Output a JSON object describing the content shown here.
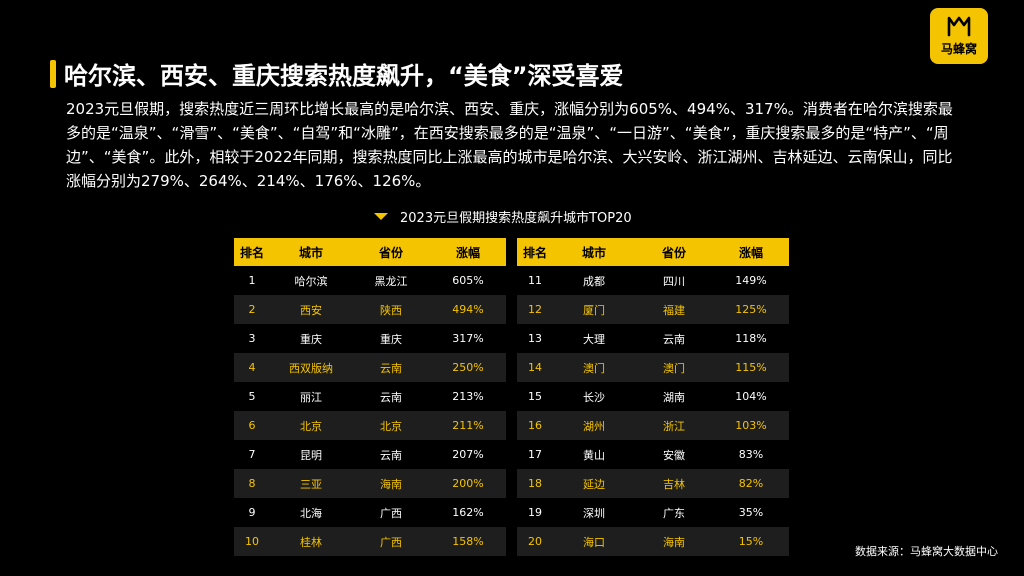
{
  "brand": {
    "logo_text": "马蜂窝",
    "accent": "#f5c400"
  },
  "title": "哈尔滨、西安、重庆搜索热度飙升，“美食”深受喜爱",
  "description": "2023元旦假期，搜索热度近三周环比增长最高的是哈尔滨、西安、重庆，涨幅分别为605%、494%、317%。消费者在哈尔滨搜索最多的是“温泉”、“滑雪”、“美食”、“自驾”和“冰雕”，在西安搜索最多的是“温泉”、“一日游”、“美食”，重庆搜索最多的是“特产”、“周边”、“美食”。此外，相较于2022年同期，搜索热度同比上涨最高的城市是哈尔滨、大兴安岭、浙江湖州、吉林延边、云南保山，同比涨幅分别为279%、264%、214%、176%、126%。",
  "table_title": "2023元旦假期搜索热度飙升城市TOP20",
  "headers": [
    "排名",
    "城市",
    "省份",
    "涨幅"
  ],
  "rows_left": [
    [
      "1",
      "哈尔滨",
      "黑龙江",
      "605%"
    ],
    [
      "2",
      "西安",
      "陕西",
      "494%"
    ],
    [
      "3",
      "重庆",
      "重庆",
      "317%"
    ],
    [
      "4",
      "西双版纳",
      "云南",
      "250%"
    ],
    [
      "5",
      "丽江",
      "云南",
      "213%"
    ],
    [
      "6",
      "北京",
      "北京",
      "211%"
    ],
    [
      "7",
      "昆明",
      "云南",
      "207%"
    ],
    [
      "8",
      "三亚",
      "海南",
      "200%"
    ],
    [
      "9",
      "北海",
      "广西",
      "162%"
    ],
    [
      "10",
      "桂林",
      "广西",
      "158%"
    ]
  ],
  "rows_right": [
    [
      "11",
      "成都",
      "四川",
      "149%"
    ],
    [
      "12",
      "厦门",
      "福建",
      "125%"
    ],
    [
      "13",
      "大理",
      "云南",
      "118%"
    ],
    [
      "14",
      "澳门",
      "澳门",
      "115%"
    ],
    [
      "15",
      "长沙",
      "湖南",
      "104%"
    ],
    [
      "16",
      "湖州",
      "浙江",
      "103%"
    ],
    [
      "17",
      "黄山",
      "安徽",
      "83%"
    ],
    [
      "18",
      "延边",
      "吉林",
      "82%"
    ],
    [
      "19",
      "深圳",
      "广东",
      "35%"
    ],
    [
      "20",
      "海口",
      "海南",
      "15%"
    ]
  ],
  "source": "数据来源：马蜂窝大数据中心"
}
